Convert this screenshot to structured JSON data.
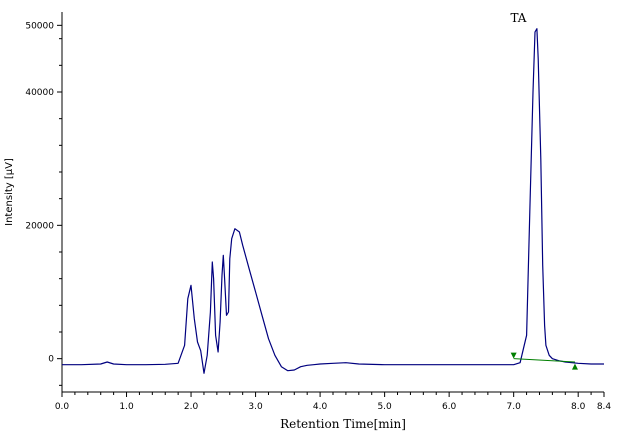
{
  "chart_data": {
    "type": "line",
    "xlabel": "Retention Time[min]",
    "ylabel": "Intensity [µV]",
    "xlim": [
      0,
      8.4
    ],
    "ylim": [
      -5000,
      52000
    ],
    "x_ticks": [
      "0.0",
      "1.0",
      "2.0",
      "3.0",
      "4.0",
      "5.0",
      "6.0",
      "7.0",
      "8.0",
      "8.4"
    ],
    "x_tick_values": [
      0,
      1,
      2,
      3,
      4,
      5,
      6,
      7,
      8,
      8.4
    ],
    "y_ticks": [
      "0",
      "20000",
      "40000",
      "50000"
    ],
    "y_tick_values": [
      0,
      20000,
      40000,
      50000
    ],
    "annotations": [
      {
        "text": "TA",
        "x": 6.95,
        "y": 50500
      }
    ],
    "integration_markers": [
      {
        "x": 7.0,
        "y": 0,
        "shape": "down-triangle"
      },
      {
        "x": 7.95,
        "y": -1200,
        "shape": "up-triangle"
      }
    ],
    "baseline": {
      "x": [
        7.0,
        7.95
      ],
      "y": [
        0,
        -500
      ]
    },
    "series": [
      {
        "color": "#00007f",
        "x": [
          0,
          0.3,
          0.6,
          0.7,
          0.8,
          1.0,
          1.3,
          1.6,
          1.8,
          1.9,
          1.95,
          2.0,
          2.05,
          2.1,
          2.15,
          2.2,
          2.25,
          2.3,
          2.33,
          2.35,
          2.38,
          2.42,
          2.45,
          2.48,
          2.5,
          2.52,
          2.55,
          2.58,
          2.6,
          2.63,
          2.68,
          2.75,
          2.8,
          2.9,
          3.0,
          3.1,
          3.2,
          3.3,
          3.4,
          3.5,
          3.6,
          3.7,
          3.8,
          3.9,
          4.0,
          4.2,
          4.4,
          4.6,
          5.0,
          5.5,
          6.0,
          6.5,
          7.0,
          7.1,
          7.2,
          7.25,
          7.3,
          7.33,
          7.36,
          7.38,
          7.42,
          7.45,
          7.48,
          7.5,
          7.55,
          7.6,
          7.7,
          7.8,
          8.0,
          8.2,
          8.4
        ],
        "y": [
          -900,
          -900,
          -800,
          -500,
          -800,
          -900,
          -900,
          -850,
          -700,
          2000,
          9000,
          11000,
          6000,
          2500,
          1200,
          -2200,
          500,
          7000,
          14500,
          12000,
          3500,
          1000,
          5500,
          12500,
          15500,
          12000,
          6500,
          7000,
          15000,
          18000,
          19500,
          19000,
          17000,
          13500,
          10000,
          6500,
          3000,
          500,
          -1200,
          -1800,
          -1700,
          -1200,
          -1000,
          -900,
          -800,
          -700,
          -600,
          -800,
          -900,
          -900,
          -900,
          -900,
          -900,
          -600,
          3500,
          22000,
          40000,
          49000,
          49500,
          45000,
          30000,
          14000,
          5000,
          2000,
          500,
          0,
          -300,
          -500,
          -700,
          -800,
          -800
        ]
      }
    ]
  }
}
